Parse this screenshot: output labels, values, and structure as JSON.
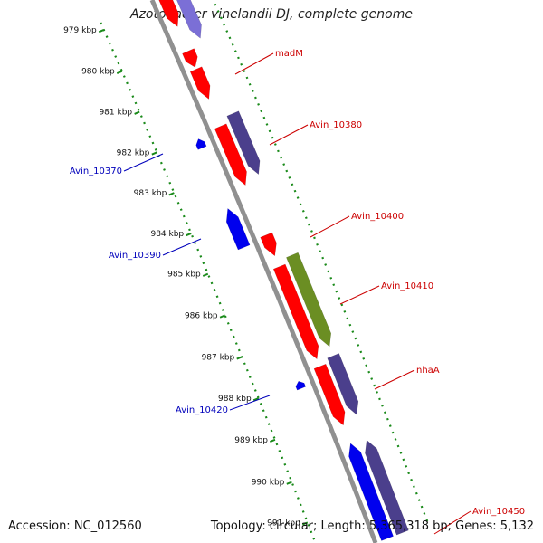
{
  "title": "Azotobacter vinelandii DJ, complete genome",
  "accession": "Accession: NC_012560",
  "topology": "Topology: circular; Length: 5,365,318 bp; Genes: 5,132",
  "colors": {
    "forward_gene": "#ff0000",
    "reverse_gene": "#0000ee",
    "forward_cds_alt": "#4b3f8c",
    "green_gene": "#6b8e23",
    "backbone": "#909090",
    "tick": "#1a8a1a",
    "label_red": "#cc0000",
    "label_blue": "#0000bb"
  },
  "ticks": [
    {
      "label": "979 kbp"
    },
    {
      "label": "980 kbp"
    },
    {
      "label": "981 kbp"
    },
    {
      "label": "982 kbp"
    },
    {
      "label": "983 kbp"
    },
    {
      "label": "984 kbp"
    },
    {
      "label": "985 kbp"
    },
    {
      "label": "986 kbp"
    },
    {
      "label": "987 kbp"
    },
    {
      "label": "988 kbp"
    },
    {
      "label": "989 kbp"
    },
    {
      "label": "990 kbp"
    },
    {
      "label": "991 kbp"
    }
  ],
  "gene_labels": [
    {
      "name": "madM",
      "strand": "forward"
    },
    {
      "name": "Avin_10380",
      "strand": "forward"
    },
    {
      "name": "Avin_10370",
      "strand": "reverse"
    },
    {
      "name": "Avin_10400",
      "strand": "forward"
    },
    {
      "name": "Avin_10390",
      "strand": "reverse"
    },
    {
      "name": "Avin_10410",
      "strand": "forward"
    },
    {
      "name": "nhaA",
      "strand": "forward"
    },
    {
      "name": "Avin_10420",
      "strand": "reverse"
    },
    {
      "name": "Avin_10450",
      "strand": "forward"
    }
  ]
}
